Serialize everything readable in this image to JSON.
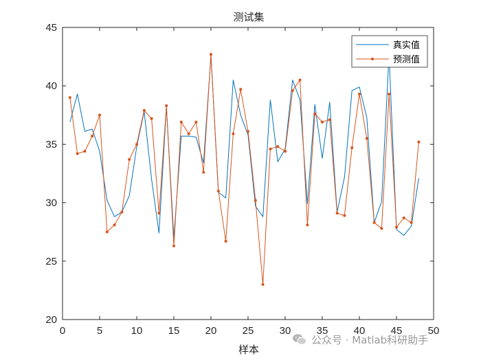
{
  "watermark": {
    "text": "公众号 · Matlab科研助手",
    "icon": "wechat-icon"
  },
  "chart_data": {
    "type": "line",
    "title": "测试集",
    "xlabel": "样本",
    "ylabel": "",
    "xlim": [
      0,
      50
    ],
    "ylim": [
      20,
      45
    ],
    "xticks": [
      0,
      5,
      10,
      15,
      20,
      25,
      30,
      35,
      40,
      45,
      50
    ],
    "yticks": [
      20,
      25,
      30,
      35,
      40,
      45
    ],
    "grid": false,
    "legend_position": "top-right",
    "x": [
      1,
      2,
      3,
      4,
      5,
      6,
      7,
      8,
      9,
      10,
      11,
      12,
      13,
      14,
      15,
      16,
      17,
      18,
      19,
      20,
      21,
      22,
      23,
      24,
      25,
      26,
      27,
      28,
      29,
      30,
      31,
      32,
      33,
      34,
      35,
      36,
      37,
      38,
      39,
      40,
      41,
      42,
      43,
      44,
      45,
      46,
      47,
      48
    ],
    "series": [
      {
        "name": "真实值",
        "color": "#0072BD",
        "marker": "none",
        "values": [
          36.9,
          39.3,
          36.1,
          36.3,
          34.4,
          30.2,
          28.8,
          29.2,
          30.6,
          34.8,
          37.8,
          32.0,
          27.4,
          38.2,
          27.0,
          35.7,
          35.7,
          35.6,
          33.4,
          42.6,
          30.9,
          30.4,
          40.5,
          37.5,
          35.8,
          29.7,
          28.8,
          38.8,
          33.5,
          34.6,
          40.5,
          38.8,
          29.9,
          38.4,
          33.8,
          38.6,
          29.2,
          32.2,
          39.6,
          39.9,
          37.3,
          28.3,
          30.1,
          42.7,
          27.7,
          27.2,
          28.0,
          32.1
        ]
      },
      {
        "name": "预测值",
        "color": "#D95319",
        "marker": "dot",
        "values": [
          39.0,
          34.2,
          34.4,
          35.7,
          37.5,
          27.5,
          28.1,
          29.2,
          33.7,
          35.0,
          37.9,
          37.2,
          29.1,
          38.3,
          26.3,
          36.9,
          35.9,
          36.9,
          32.6,
          42.7,
          31.0,
          26.7,
          35.9,
          39.7,
          36.1,
          30.2,
          23.0,
          34.6,
          34.8,
          34.4,
          39.6,
          40.5,
          28.1,
          37.6,
          36.9,
          37.1,
          29.1,
          28.9,
          34.7,
          39.3,
          35.5,
          28.3,
          27.8,
          39.3,
          27.9,
          28.7,
          28.3,
          35.2
        ]
      }
    ]
  }
}
